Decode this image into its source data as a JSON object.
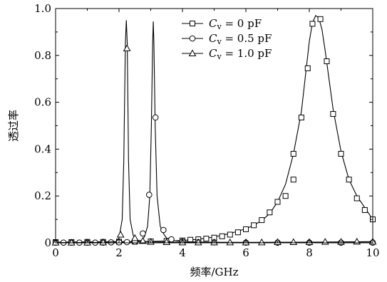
{
  "chart_data": {
    "type": "line",
    "title": "",
    "xlabel": "频率/GHz",
    "ylabel": "透过率",
    "xlim": [
      0,
      10
    ],
    "ylim": [
      0,
      1.0
    ],
    "x_ticks": [
      "0",
      "2",
      "4",
      "6",
      "8",
      "10"
    ],
    "y_ticks": [
      "0",
      "0.2",
      "0.4",
      "0.6",
      "0.8",
      "1.0"
    ],
    "grid": false,
    "legend_position": "top-right",
    "series": [
      {
        "name": "C_v = 0 pF",
        "legend_var": "C",
        "legend_sub": "v",
        "legend_rest": " = 0 pF",
        "marker": "square",
        "line": [
          [
            0.0,
            0.003
          ],
          [
            1.0,
            0.004
          ],
          [
            2.0,
            0.005
          ],
          [
            3.0,
            0.006
          ],
          [
            3.5,
            0.008
          ],
          [
            4.0,
            0.01
          ],
          [
            4.5,
            0.015
          ],
          [
            5.0,
            0.025
          ],
          [
            5.5,
            0.04
          ],
          [
            6.0,
            0.06
          ],
          [
            6.25,
            0.075
          ],
          [
            6.5,
            0.095
          ],
          [
            6.75,
            0.125
          ],
          [
            7.0,
            0.175
          ],
          [
            7.25,
            0.25
          ],
          [
            7.5,
            0.38
          ],
          [
            7.75,
            0.56
          ],
          [
            7.9,
            0.74
          ],
          [
            8.0,
            0.86
          ],
          [
            8.1,
            0.94
          ],
          [
            8.2,
            0.97
          ],
          [
            8.3,
            0.96
          ],
          [
            8.4,
            0.91
          ],
          [
            8.5,
            0.82
          ],
          [
            8.6,
            0.72
          ],
          [
            8.75,
            0.57
          ],
          [
            9.0,
            0.39
          ],
          [
            9.25,
            0.27
          ],
          [
            9.5,
            0.2
          ],
          [
            9.75,
            0.15
          ],
          [
            10.0,
            0.1
          ]
        ],
        "markers": [
          [
            0.0,
            0.003
          ],
          [
            0.5,
            0.003
          ],
          [
            1.0,
            0.004
          ],
          [
            1.5,
            0.004
          ],
          [
            2.0,
            0.005
          ],
          [
            2.5,
            0.005
          ],
          [
            3.0,
            0.006
          ],
          [
            3.5,
            0.008
          ],
          [
            4.0,
            0.01
          ],
          [
            4.25,
            0.013
          ],
          [
            4.5,
            0.015
          ],
          [
            4.75,
            0.018
          ],
          [
            5.0,
            0.022
          ],
          [
            5.25,
            0.028
          ],
          [
            5.5,
            0.035
          ],
          [
            5.75,
            0.045
          ],
          [
            6.0,
            0.058
          ],
          [
            6.25,
            0.075
          ],
          [
            6.5,
            0.097
          ],
          [
            6.75,
            0.13
          ],
          [
            7.0,
            0.175
          ],
          [
            7.25,
            0.2
          ],
          [
            7.5,
            0.27
          ],
          [
            7.5,
            0.38
          ],
          [
            7.75,
            0.535
          ],
          [
            7.95,
            0.745
          ],
          [
            8.1,
            0.935
          ],
          [
            8.35,
            0.955
          ],
          [
            8.55,
            0.775
          ],
          [
            8.75,
            0.55
          ],
          [
            9.0,
            0.38
          ],
          [
            9.25,
            0.27
          ],
          [
            9.5,
            0.19
          ],
          [
            9.75,
            0.14
          ],
          [
            10.0,
            0.1
          ]
        ]
      },
      {
        "name": "C_v = 0.5 pF",
        "legend_var": "C",
        "legend_sub": "v",
        "legend_rest": " = 0.5 pF",
        "marker": "circle",
        "line": [
          [
            0.0,
            0.001
          ],
          [
            1.5,
            0.001
          ],
          [
            2.0,
            0.002
          ],
          [
            2.5,
            0.004
          ],
          [
            2.7,
            0.01
          ],
          [
            2.8,
            0.025
          ],
          [
            2.9,
            0.07
          ],
          [
            2.97,
            0.2
          ],
          [
            3.02,
            0.5
          ],
          [
            3.06,
            0.85
          ],
          [
            3.08,
            0.945
          ],
          [
            3.1,
            0.85
          ],
          [
            3.14,
            0.5
          ],
          [
            3.2,
            0.2
          ],
          [
            3.3,
            0.07
          ],
          [
            3.4,
            0.04
          ],
          [
            3.5,
            0.02
          ],
          [
            3.7,
            0.01
          ],
          [
            4.0,
            0.005
          ],
          [
            5.0,
            0.002
          ],
          [
            7.0,
            0.001
          ],
          [
            10.0,
            0.001
          ]
        ],
        "markers": [
          [
            0.0,
            0.001
          ],
          [
            0.25,
            0.001
          ],
          [
            0.5,
            0.001
          ],
          [
            0.75,
            0.001
          ],
          [
            1.0,
            0.001
          ],
          [
            1.25,
            0.001
          ],
          [
            1.5,
            0.001
          ],
          [
            1.75,
            0.002
          ],
          [
            2.0,
            0.002
          ],
          [
            2.25,
            0.003
          ],
          [
            2.5,
            0.005
          ],
          [
            2.75,
            0.04
          ],
          [
            2.95,
            0.205
          ],
          [
            3.15,
            0.535
          ],
          [
            3.4,
            0.055
          ],
          [
            3.65,
            0.015
          ],
          [
            4.0,
            0.005
          ],
          [
            4.5,
            0.003
          ],
          [
            5.0,
            0.002
          ],
          [
            6.0,
            0.001
          ],
          [
            7.0,
            0.001
          ],
          [
            8.0,
            0.001
          ],
          [
            9.0,
            0.001
          ],
          [
            10.0,
            0.001
          ]
        ]
      },
      {
        "name": "C_v = 1.0 pF",
        "legend_var": "C",
        "legend_sub": "v",
        "legend_rest": " = 1.0 pF",
        "marker": "triangle",
        "line": [
          [
            0.0,
            0.001
          ],
          [
            1.5,
            0.002
          ],
          [
            1.9,
            0.005
          ],
          [
            2.0,
            0.02
          ],
          [
            2.1,
            0.1
          ],
          [
            2.15,
            0.35
          ],
          [
            2.2,
            0.85
          ],
          [
            2.23,
            0.95
          ],
          [
            2.26,
            0.85
          ],
          [
            2.3,
            0.35
          ],
          [
            2.35,
            0.1
          ],
          [
            2.45,
            0.03
          ],
          [
            2.6,
            0.01
          ],
          [
            3.0,
            0.004
          ],
          [
            4.0,
            0.002
          ],
          [
            6.0,
            0.002
          ],
          [
            8.0,
            0.003
          ],
          [
            10.0,
            0.005
          ]
        ],
        "markers": [
          [
            0.0,
            0.001
          ],
          [
            0.5,
            0.001
          ],
          [
            1.0,
            0.001
          ],
          [
            1.5,
            0.002
          ],
          [
            2.05,
            0.035
          ],
          [
            2.25,
            0.83
          ],
          [
            2.5,
            0.02
          ],
          [
            2.75,
            0.008
          ],
          [
            3.0,
            0.004
          ],
          [
            3.5,
            0.003
          ],
          [
            4.0,
            0.002
          ],
          [
            4.5,
            0.002
          ],
          [
            5.0,
            0.002
          ],
          [
            5.5,
            0.002
          ],
          [
            6.0,
            0.002
          ],
          [
            6.5,
            0.002
          ],
          [
            7.0,
            0.003
          ],
          [
            7.5,
            0.003
          ],
          [
            8.0,
            0.003
          ],
          [
            8.5,
            0.004
          ],
          [
            9.0,
            0.004
          ],
          [
            9.5,
            0.005
          ],
          [
            10.0,
            0.005
          ]
        ]
      }
    ]
  }
}
